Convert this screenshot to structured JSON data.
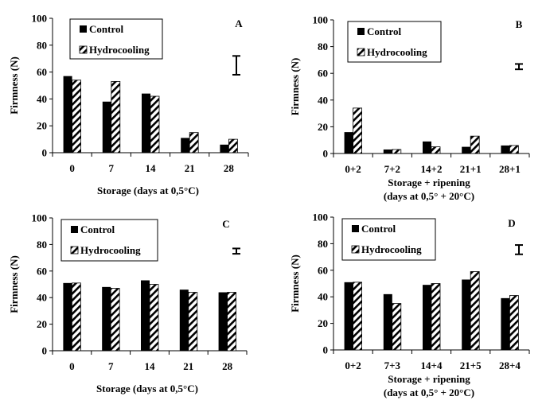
{
  "chart_data": [
    {
      "type": "bar",
      "panel": "A",
      "categories": [
        "0",
        "7",
        "14",
        "21",
        "28"
      ],
      "series": [
        {
          "name": "Control",
          "values": [
            57,
            38,
            44,
            11,
            6
          ]
        },
        {
          "name": "Hydrocooling",
          "values": [
            54,
            53,
            42,
            15,
            10
          ]
        }
      ],
      "error_bar": [
        58,
        72
      ],
      "xlabel": [
        "Storage (days at 0,5°C)"
      ],
      "ylabel": "Firmness (N)",
      "ylim": [
        0,
        100
      ],
      "yticks": [
        "0",
        "20",
        "40",
        "60",
        "80",
        "100"
      ],
      "legend": "top-left"
    },
    {
      "type": "bar",
      "panel": "B",
      "categories": [
        "0+2",
        "7+2",
        "14+2",
        "21+1",
        "28+1"
      ],
      "series": [
        {
          "name": "Control",
          "values": [
            16,
            3,
            9,
            5,
            6
          ]
        },
        {
          "name": "Hydrocooling",
          "values": [
            34,
            3,
            5,
            13,
            6
          ]
        }
      ],
      "error_bar": [
        63,
        67
      ],
      "xlabel": [
        "Storage + ripening",
        "(days at 0,5° + 20°C)"
      ],
      "ylabel": "Firmness (N)",
      "ylim": [
        0,
        100
      ],
      "yticks": [
        "0",
        "20",
        "40",
        "60",
        "80",
        "100"
      ],
      "legend": "top-left"
    },
    {
      "type": "bar",
      "panel": "C",
      "categories": [
        "0",
        "7",
        "14",
        "21",
        "28"
      ],
      "series": [
        {
          "name": "Control",
          "values": [
            51,
            48,
            53,
            46,
            44
          ]
        },
        {
          "name": "Hydrocooling",
          "values": [
            51,
            47,
            50,
            44,
            44
          ]
        }
      ],
      "error_bar": [
        73,
        77
      ],
      "xlabel": [
        "Storage (days at 0,5°C)"
      ],
      "ylabel": "Firmness (N)",
      "ylim": [
        0,
        100
      ],
      "yticks": [
        "0",
        "20",
        "40",
        "60",
        "80",
        "100"
      ],
      "legend": "top-left"
    },
    {
      "type": "bar",
      "panel": "D",
      "categories": [
        "0+2",
        "7+3",
        "14+4",
        "21+5",
        "28+4"
      ],
      "series": [
        {
          "name": "Control",
          "values": [
            51,
            42,
            49,
            53,
            39
          ]
        },
        {
          "name": "Hydrocooling",
          "values": [
            51,
            35,
            50,
            59,
            41
          ]
        }
      ],
      "error_bar": [
        72,
        79
      ],
      "xlabel": [
        "Storage + ripening",
        "(days at 0,5° + 20°C)"
      ],
      "ylabel": "Firmness (N)",
      "ylim": [
        0,
        100
      ],
      "yticks": [
        "0",
        "20",
        "40",
        "60",
        "80",
        "100"
      ],
      "legend": "top-left"
    }
  ]
}
